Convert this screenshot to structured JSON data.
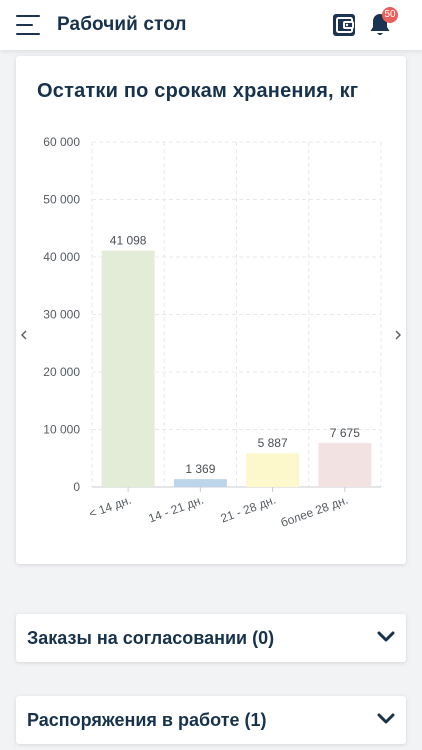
{
  "header": {
    "title": "Рабочий стол",
    "notifications_count": "50",
    "icons": {
      "menu": "hamburger-menu-icon",
      "wallet": "wallet-icon",
      "bell": "bell-icon"
    }
  },
  "chart_data": {
    "type": "bar",
    "title": "Остатки по срокам хранения, кг",
    "xlabel": "",
    "ylabel": "",
    "categories": [
      "< 14 дн.",
      "14 - 21 дн.",
      "21 - 28 дн.",
      "более 28 дн."
    ],
    "values": [
      41098,
      1369,
      5887,
      7675
    ],
    "value_labels": [
      "41 098",
      "1 369",
      "5 887",
      "7 675"
    ],
    "colors": [
      "#e3ecd6",
      "#bcd5ea",
      "#fcf8cc",
      "#f3e2e2"
    ],
    "ylim": [
      0,
      60000
    ],
    "yticks": [
      0,
      10000,
      20000,
      30000,
      40000,
      50000,
      60000
    ],
    "ytick_labels": [
      "0",
      "10 000",
      "20 000",
      "30 000",
      "40 000",
      "50 000",
      "60 000"
    ],
    "grid": true,
    "legend": "none"
  },
  "sections": [
    {
      "label": "Заказы на согласовании (0)",
      "icon": "chevron-down-icon"
    },
    {
      "label": "Распоряжения в работе (1)",
      "icon": "chevron-down-icon"
    }
  ]
}
